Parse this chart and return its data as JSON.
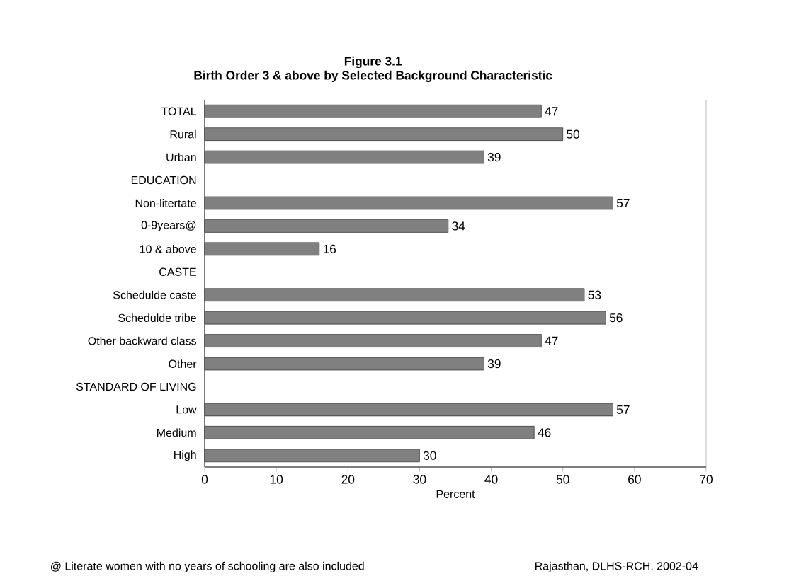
{
  "chart_data": {
    "type": "bar",
    "orientation": "horizontal",
    "title": "Figure 3.1",
    "subtitle": "Birth Order 3 & above by Selected Background Characteristic",
    "categories": [
      "TOTAL",
      "Rural",
      "Urban",
      "EDUCATION",
      "Non-litertate",
      "0-9years@",
      "10 & above",
      "CASTE",
      "Schedulde caste",
      "Schedulde tribe",
      "Other backward class",
      "Other",
      "STANDARD OF LIVING",
      "Low",
      "Medium",
      "High"
    ],
    "values": [
      47,
      50,
      39,
      null,
      57,
      34,
      16,
      null,
      53,
      56,
      47,
      39,
      null,
      57,
      46,
      30
    ],
    "color": "#808080",
    "data_labels": true,
    "xlabel": "Percent",
    "xlim": [
      0,
      70
    ],
    "xticks": [
      0,
      10,
      20,
      30,
      40,
      50,
      60,
      70
    ],
    "annotations": [
      "@ Literate women with no years of schooling are also included",
      "Rajasthan, DLHS-RCH, 2002-04"
    ]
  }
}
